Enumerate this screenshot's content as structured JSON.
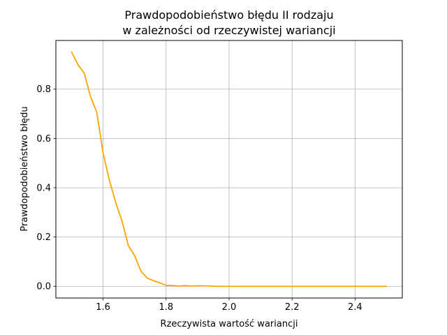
{
  "chart_data": {
    "type": "line",
    "title_line1": "Prawdopodobieństwo błędu II rodzaju",
    "title_line2": "w zależności od rzeczywistej wariancji",
    "xlabel": "Rzeczywista wartość wariancji",
    "ylabel": "Prawdopodobieństwo błędu",
    "xlim": [
      1.45,
      2.55
    ],
    "ylim": [
      -0.0475,
      0.9975
    ],
    "grid": true,
    "xticks": [
      1.6,
      1.8,
      2.0,
      2.2,
      2.4
    ],
    "xtick_labels": [
      "1.6",
      "1.8",
      "2.0",
      "2.2",
      "2.4"
    ],
    "yticks": [
      0.0,
      0.2,
      0.4,
      0.6,
      0.8
    ],
    "ytick_labels": [
      "0.0",
      "0.2",
      "0.4",
      "0.6",
      "0.8"
    ],
    "series": [
      {
        "color": "#ffa500",
        "x": [
          1.5,
          1.52,
          1.54,
          1.56,
          1.58,
          1.6,
          1.62,
          1.64,
          1.66,
          1.68,
          1.7,
          1.72,
          1.74,
          1.76,
          1.78,
          1.8,
          1.82,
          1.84,
          1.86,
          1.88,
          1.9,
          1.92,
          1.94,
          1.96,
          1.98,
          2.0,
          2.1,
          2.2,
          2.3,
          2.4,
          2.5
        ],
        "y": [
          0.95,
          0.9,
          0.865,
          0.77,
          0.705,
          0.54,
          0.43,
          0.34,
          0.265,
          0.165,
          0.125,
          0.062,
          0.033,
          0.023,
          0.014,
          0.004,
          0.003,
          0.001,
          0.003,
          0.001,
          0.002,
          0.002,
          0.001,
          0.0,
          0.0,
          0.0,
          0.0,
          0.0,
          0.0,
          0.0,
          0.0
        ]
      }
    ]
  }
}
